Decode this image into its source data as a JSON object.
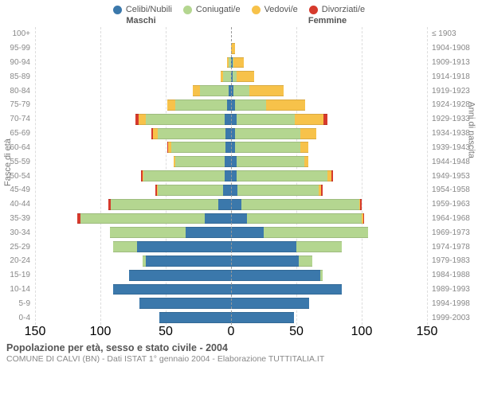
{
  "legend": [
    {
      "label": "Celibi/Nubili",
      "color": "#3b78ab"
    },
    {
      "label": "Coniugati/e",
      "color": "#b4d690"
    },
    {
      "label": "Vedovi/e",
      "color": "#f7c24a"
    },
    {
      "label": "Divorziati/e",
      "color": "#d63a2c"
    }
  ],
  "headers": {
    "maschi": "Maschi",
    "femmine": "Femmine"
  },
  "axis_labels": {
    "age": "Fasce di età",
    "year": "Anni di nascita"
  },
  "chart": {
    "type": "population-pyramid",
    "xmax": 150,
    "xticks_m": [
      150,
      100,
      50,
      0
    ],
    "xticks_f": [
      50,
      100,
      150
    ],
    "background_color": "#ffffff",
    "grid_color": "#e6e6e6",
    "centerline_color": "#999999",
    "bar_height_ratio": 0.78,
    "label_fontsize": 10,
    "tick_fontsize": 10,
    "axis_label_fontsize": 11,
    "rows": [
      {
        "age": "100+",
        "year": "≤ 1903",
        "m": {
          "c": 0,
          "co": 0,
          "v": 0,
          "d": 0
        },
        "f": {
          "c": 0,
          "co": 0,
          "v": 0,
          "d": 0
        }
      },
      {
        "age": "95-99",
        "year": "1904-1908",
        "m": {
          "c": 0,
          "co": 0,
          "v": 0,
          "d": 0
        },
        "f": {
          "c": 0,
          "co": 0,
          "v": 3,
          "d": 0
        }
      },
      {
        "age": "90-94",
        "year": "1909-1913",
        "m": {
          "c": 0,
          "co": 2,
          "v": 1,
          "d": 0
        },
        "f": {
          "c": 1,
          "co": 1,
          "v": 8,
          "d": 0
        }
      },
      {
        "age": "85-89",
        "year": "1914-1918",
        "m": {
          "c": 0,
          "co": 6,
          "v": 2,
          "d": 0
        },
        "f": {
          "c": 1,
          "co": 3,
          "v": 14,
          "d": 0
        }
      },
      {
        "age": "80-84",
        "year": "1919-1923",
        "m": {
          "c": 2,
          "co": 22,
          "v": 5,
          "d": 0
        },
        "f": {
          "c": 2,
          "co": 12,
          "v": 26,
          "d": 0
        }
      },
      {
        "age": "75-79",
        "year": "1924-1928",
        "m": {
          "c": 3,
          "co": 40,
          "v": 6,
          "d": 0
        },
        "f": {
          "c": 3,
          "co": 24,
          "v": 30,
          "d": 0
        }
      },
      {
        "age": "70-74",
        "year": "1929-1933",
        "m": {
          "c": 5,
          "co": 60,
          "v": 6,
          "d": 2
        },
        "f": {
          "c": 4,
          "co": 45,
          "v": 22,
          "d": 3
        }
      },
      {
        "age": "65-69",
        "year": "1934-1938",
        "m": {
          "c": 4,
          "co": 52,
          "v": 4,
          "d": 1
        },
        "f": {
          "c": 3,
          "co": 50,
          "v": 12,
          "d": 0
        }
      },
      {
        "age": "60-64",
        "year": "1939-1943",
        "m": {
          "c": 4,
          "co": 42,
          "v": 2,
          "d": 1
        },
        "f": {
          "c": 3,
          "co": 50,
          "v": 6,
          "d": 0
        }
      },
      {
        "age": "55-59",
        "year": "1944-1948",
        "m": {
          "c": 5,
          "co": 38,
          "v": 1,
          "d": 0
        },
        "f": {
          "c": 4,
          "co": 52,
          "v": 3,
          "d": 0
        }
      },
      {
        "age": "50-54",
        "year": "1949-1953",
        "m": {
          "c": 5,
          "co": 62,
          "v": 1,
          "d": 1
        },
        "f": {
          "c": 4,
          "co": 70,
          "v": 3,
          "d": 1
        }
      },
      {
        "age": "45-49",
        "year": "1954-1958",
        "m": {
          "c": 6,
          "co": 50,
          "v": 1,
          "d": 1
        },
        "f": {
          "c": 5,
          "co": 62,
          "v": 2,
          "d": 1
        }
      },
      {
        "age": "40-44",
        "year": "1959-1963",
        "m": {
          "c": 10,
          "co": 82,
          "v": 0,
          "d": 2
        },
        "f": {
          "c": 8,
          "co": 90,
          "v": 1,
          "d": 1
        }
      },
      {
        "age": "35-39",
        "year": "1964-1968",
        "m": {
          "c": 20,
          "co": 95,
          "v": 0,
          "d": 3
        },
        "f": {
          "c": 12,
          "co": 88,
          "v": 1,
          "d": 1
        }
      },
      {
        "age": "30-34",
        "year": "1969-1973",
        "m": {
          "c": 35,
          "co": 58,
          "v": 0,
          "d": 0
        },
        "f": {
          "c": 25,
          "co": 80,
          "v": 0,
          "d": 0
        }
      },
      {
        "age": "25-29",
        "year": "1974-1978",
        "m": {
          "c": 72,
          "co": 18,
          "v": 0,
          "d": 0
        },
        "f": {
          "c": 50,
          "co": 35,
          "v": 0,
          "d": 0
        }
      },
      {
        "age": "20-24",
        "year": "1979-1983",
        "m": {
          "c": 65,
          "co": 3,
          "v": 0,
          "d": 0
        },
        "f": {
          "c": 52,
          "co": 10,
          "v": 0,
          "d": 0
        }
      },
      {
        "age": "15-19",
        "year": "1984-1988",
        "m": {
          "c": 78,
          "co": 0,
          "v": 0,
          "d": 0
        },
        "f": {
          "c": 68,
          "co": 2,
          "v": 0,
          "d": 0
        }
      },
      {
        "age": "10-14",
        "year": "1989-1993",
        "m": {
          "c": 90,
          "co": 0,
          "v": 0,
          "d": 0
        },
        "f": {
          "c": 85,
          "co": 0,
          "v": 0,
          "d": 0
        }
      },
      {
        "age": "5-9",
        "year": "1994-1998",
        "m": {
          "c": 70,
          "co": 0,
          "v": 0,
          "d": 0
        },
        "f": {
          "c": 60,
          "co": 0,
          "v": 0,
          "d": 0
        }
      },
      {
        "age": "0-4",
        "year": "1999-2003",
        "m": {
          "c": 55,
          "co": 0,
          "v": 0,
          "d": 0
        },
        "f": {
          "c": 48,
          "co": 0,
          "v": 0,
          "d": 0
        }
      }
    ]
  },
  "footer": {
    "title": "Popolazione per età, sesso e stato civile - 2004",
    "subtitle": "COMUNE DI CALVI (BN) - Dati ISTAT 1° gennaio 2004 - Elaborazione TUTTITALIA.IT"
  }
}
